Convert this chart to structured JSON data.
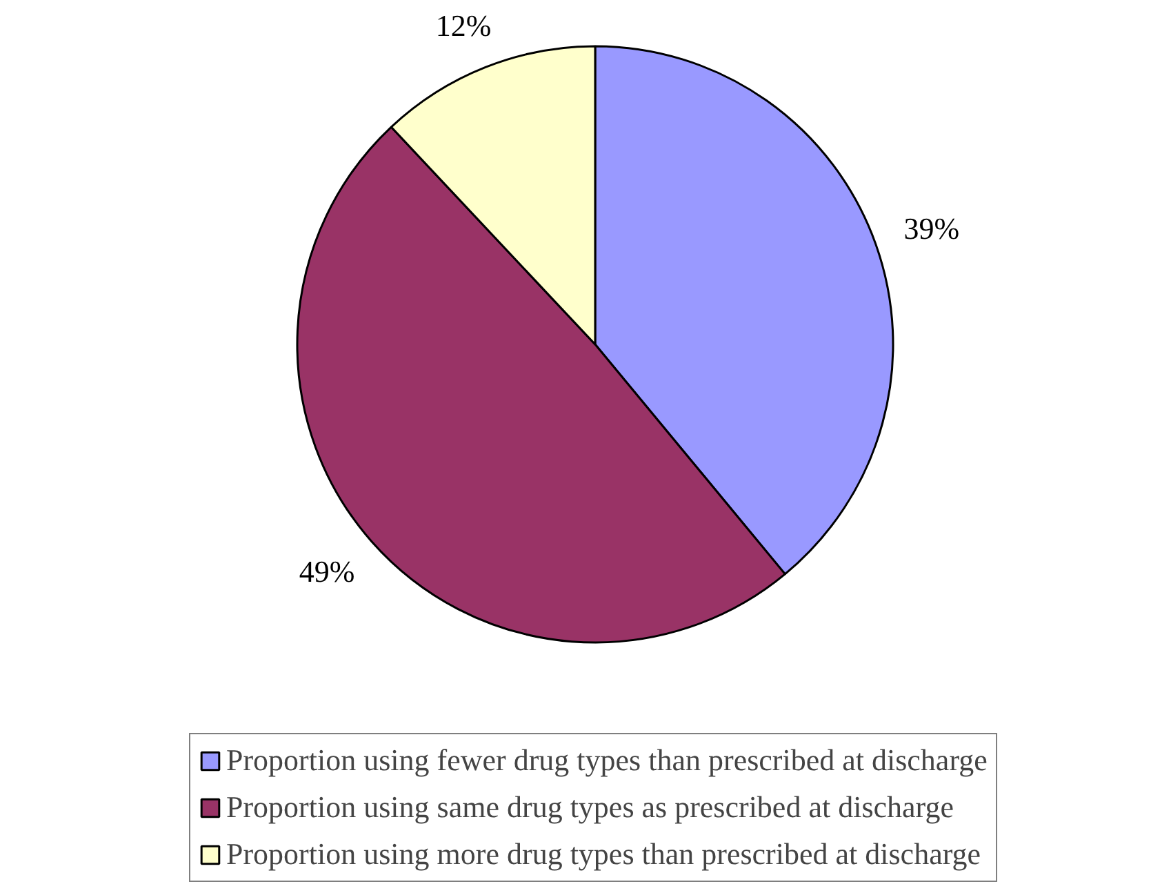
{
  "chart_data": {
    "type": "pie",
    "categories": [
      "Proportion using fewer drug types than prescribed at discharge",
      "Proportion using same drug types as prescribed at discharge",
      "Proportion using more drug types than prescribed at discharge"
    ],
    "values": [
      39,
      49,
      12
    ],
    "colors": [
      "#9999ff",
      "#993366",
      "#ffffcc"
    ],
    "data_labels": true,
    "value_labels": [
      "39%",
      "49%",
      "12%"
    ],
    "legend": "bottom"
  }
}
